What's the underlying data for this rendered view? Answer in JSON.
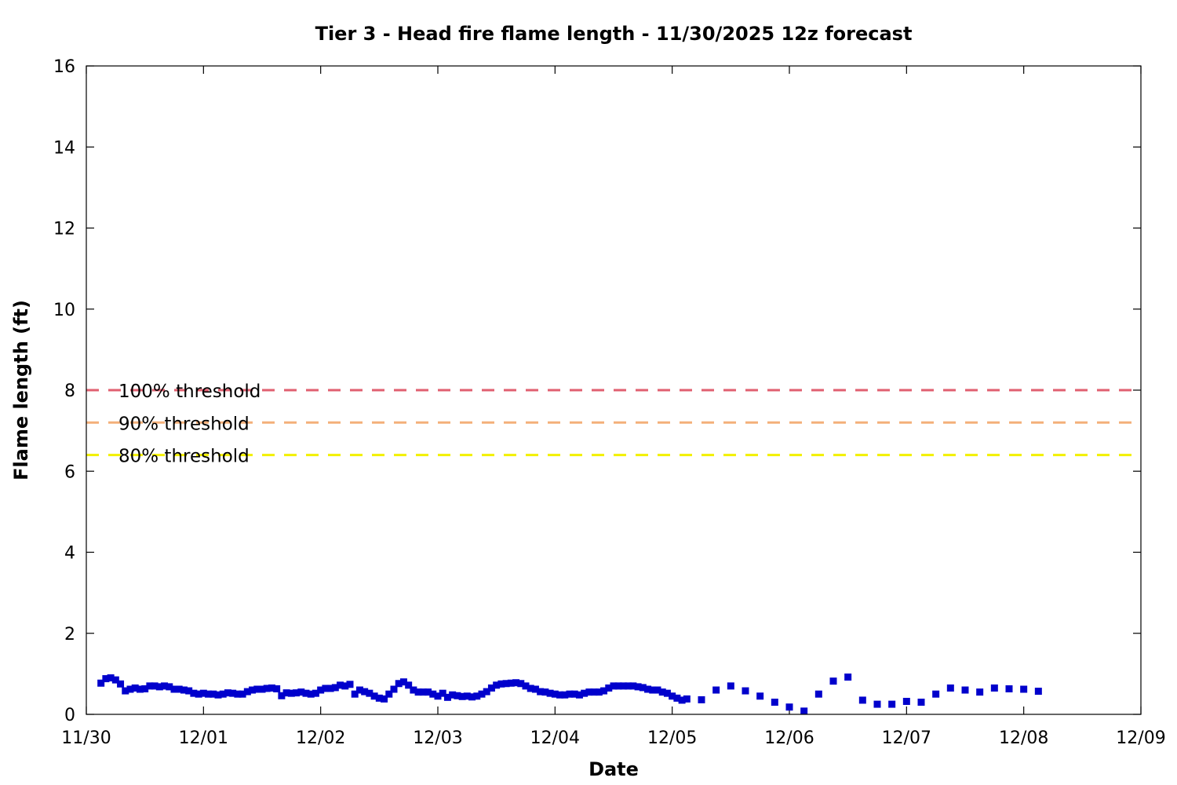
{
  "chart_data": {
    "type": "scatter",
    "title": "Tier 3 - Head fire flame length - 11/30/2025 12z forecast",
    "xlabel": "Date",
    "ylabel": "Flame length (ft)",
    "ylim": [
      0,
      16
    ],
    "yticks": [
      0,
      2,
      4,
      6,
      8,
      10,
      12,
      14,
      16
    ],
    "xlim": [
      "2025-11-30 00:00",
      "2025-12-09 00:00"
    ],
    "xticks": [
      {
        "date": "2025-11-30",
        "label": "11/30"
      },
      {
        "date": "2025-12-01",
        "label": "12/01"
      },
      {
        "date": "2025-12-02",
        "label": "12/02"
      },
      {
        "date": "2025-12-03",
        "label": "12/03"
      },
      {
        "date": "2025-12-04",
        "label": "12/04"
      },
      {
        "date": "2025-12-05",
        "label": "12/05"
      },
      {
        "date": "2025-12-06",
        "label": "12/06"
      },
      {
        "date": "2025-12-07",
        "label": "12/07"
      },
      {
        "date": "2025-12-08",
        "label": "12/08"
      },
      {
        "date": "2025-12-09",
        "label": "12/09"
      }
    ],
    "grid": false,
    "thresholds": [
      {
        "name": "100% threshold",
        "value": 8.0,
        "color": "#e06070"
      },
      {
        "name": "90% threshold",
        "value": 7.2,
        "color": "#f4b07a"
      },
      {
        "name": "80% threshold",
        "value": 6.4,
        "color": "#f2f000"
      }
    ],
    "series": [
      {
        "color": "#0000cc",
        "marker": "square",
        "x": [
          "2025-11-30 03:00",
          "2025-11-30 04:00",
          "2025-11-30 05:00",
          "2025-11-30 06:00",
          "2025-11-30 07:00",
          "2025-11-30 08:00",
          "2025-11-30 09:00",
          "2025-11-30 10:00",
          "2025-11-30 11:00",
          "2025-11-30 12:00",
          "2025-11-30 13:00",
          "2025-11-30 14:00",
          "2025-11-30 15:00",
          "2025-11-30 16:00",
          "2025-11-30 17:00",
          "2025-11-30 18:00",
          "2025-11-30 19:00",
          "2025-11-30 20:00",
          "2025-11-30 21:00",
          "2025-11-30 22:00",
          "2025-11-30 23:00",
          "2025-12-01 00:00",
          "2025-12-01 01:00",
          "2025-12-01 02:00",
          "2025-12-01 03:00",
          "2025-12-01 04:00",
          "2025-12-01 05:00",
          "2025-12-01 06:00",
          "2025-12-01 07:00",
          "2025-12-01 08:00",
          "2025-12-01 09:00",
          "2025-12-01 10:00",
          "2025-12-01 11:00",
          "2025-12-01 12:00",
          "2025-12-01 13:00",
          "2025-12-01 14:00",
          "2025-12-01 15:00",
          "2025-12-01 16:00",
          "2025-12-01 17:00",
          "2025-12-01 18:00",
          "2025-12-01 19:00",
          "2025-12-01 20:00",
          "2025-12-01 21:00",
          "2025-12-01 22:00",
          "2025-12-01 23:00",
          "2025-12-02 00:00",
          "2025-12-02 01:00",
          "2025-12-02 02:00",
          "2025-12-02 03:00",
          "2025-12-02 04:00",
          "2025-12-02 05:00",
          "2025-12-02 06:00",
          "2025-12-02 07:00",
          "2025-12-02 08:00",
          "2025-12-02 09:00",
          "2025-12-02 10:00",
          "2025-12-02 11:00",
          "2025-12-02 12:00",
          "2025-12-02 13:00",
          "2025-12-02 14:00",
          "2025-12-02 15:00",
          "2025-12-02 16:00",
          "2025-12-02 17:00",
          "2025-12-02 18:00",
          "2025-12-02 19:00",
          "2025-12-02 20:00",
          "2025-12-02 21:00",
          "2025-12-02 22:00",
          "2025-12-02 23:00",
          "2025-12-03 00:00",
          "2025-12-03 01:00",
          "2025-12-03 02:00",
          "2025-12-03 03:00",
          "2025-12-03 04:00",
          "2025-12-03 05:00",
          "2025-12-03 06:00",
          "2025-12-03 07:00",
          "2025-12-03 08:00",
          "2025-12-03 09:00",
          "2025-12-03 10:00",
          "2025-12-03 11:00",
          "2025-12-03 12:00",
          "2025-12-03 13:00",
          "2025-12-03 14:00",
          "2025-12-03 15:00",
          "2025-12-03 16:00",
          "2025-12-03 17:00",
          "2025-12-03 18:00",
          "2025-12-03 19:00",
          "2025-12-03 20:00",
          "2025-12-03 21:00",
          "2025-12-03 22:00",
          "2025-12-03 23:00",
          "2025-12-04 00:00",
          "2025-12-04 01:00",
          "2025-12-04 02:00",
          "2025-12-04 03:00",
          "2025-12-04 04:00",
          "2025-12-04 05:00",
          "2025-12-04 06:00",
          "2025-12-04 07:00",
          "2025-12-04 08:00",
          "2025-12-04 09:00",
          "2025-12-04 10:00",
          "2025-12-04 11:00",
          "2025-12-04 12:00",
          "2025-12-04 13:00",
          "2025-12-04 14:00",
          "2025-12-04 15:00",
          "2025-12-04 16:00",
          "2025-12-04 17:00",
          "2025-12-04 18:00",
          "2025-12-04 19:00",
          "2025-12-04 20:00",
          "2025-12-04 21:00",
          "2025-12-04 22:00",
          "2025-12-04 23:00",
          "2025-12-05 00:00",
          "2025-12-05 01:00",
          "2025-12-05 02:00",
          "2025-12-05 03:00",
          "2025-12-05 06:00",
          "2025-12-05 09:00",
          "2025-12-05 12:00",
          "2025-12-05 15:00",
          "2025-12-05 18:00",
          "2025-12-05 21:00",
          "2025-12-06 00:00",
          "2025-12-06 03:00",
          "2025-12-06 06:00",
          "2025-12-06 09:00",
          "2025-12-06 12:00",
          "2025-12-06 15:00",
          "2025-12-06 18:00",
          "2025-12-06 21:00",
          "2025-12-07 00:00",
          "2025-12-07 03:00",
          "2025-12-07 06:00",
          "2025-12-07 09:00",
          "2025-12-07 12:00",
          "2025-12-07 15:00",
          "2025-12-07 18:00",
          "2025-12-07 21:00",
          "2025-12-08 00:00",
          "2025-12-08 03:00"
        ],
        "y": [
          0.77,
          0.88,
          0.9,
          0.85,
          0.75,
          0.58,
          0.62,
          0.65,
          0.62,
          0.63,
          0.7,
          0.7,
          0.68,
          0.7,
          0.68,
          0.62,
          0.62,
          0.6,
          0.58,
          0.52,
          0.5,
          0.52,
          0.5,
          0.5,
          0.48,
          0.5,
          0.53,
          0.52,
          0.5,
          0.5,
          0.56,
          0.6,
          0.62,
          0.62,
          0.64,
          0.65,
          0.63,
          0.46,
          0.53,
          0.52,
          0.53,
          0.55,
          0.52,
          0.5,
          0.52,
          0.6,
          0.64,
          0.64,
          0.66,
          0.72,
          0.7,
          0.74,
          0.5,
          0.6,
          0.56,
          0.52,
          0.45,
          0.4,
          0.38,
          0.5,
          0.62,
          0.76,
          0.8,
          0.72,
          0.6,
          0.55,
          0.55,
          0.55,
          0.5,
          0.45,
          0.52,
          0.42,
          0.48,
          0.46,
          0.44,
          0.45,
          0.43,
          0.45,
          0.5,
          0.56,
          0.65,
          0.72,
          0.75,
          0.76,
          0.77,
          0.78,
          0.76,
          0.7,
          0.64,
          0.62,
          0.56,
          0.55,
          0.52,
          0.5,
          0.48,
          0.48,
          0.5,
          0.5,
          0.48,
          0.52,
          0.55,
          0.55,
          0.55,
          0.58,
          0.65,
          0.7,
          0.7,
          0.7,
          0.7,
          0.7,
          0.68,
          0.66,
          0.62,
          0.6,
          0.6,
          0.55,
          0.52,
          0.45,
          0.4,
          0.35,
          0.38,
          0.36,
          0.6,
          0.7,
          0.58,
          0.45,
          0.3,
          0.18,
          0.08,
          0.5,
          0.82,
          0.92,
          0.35,
          0.25,
          0.25,
          0.32,
          0.3,
          0.5,
          0.65,
          0.6,
          0.55,
          0.65,
          0.63,
          0.62,
          0.57
        ]
      }
    ]
  }
}
